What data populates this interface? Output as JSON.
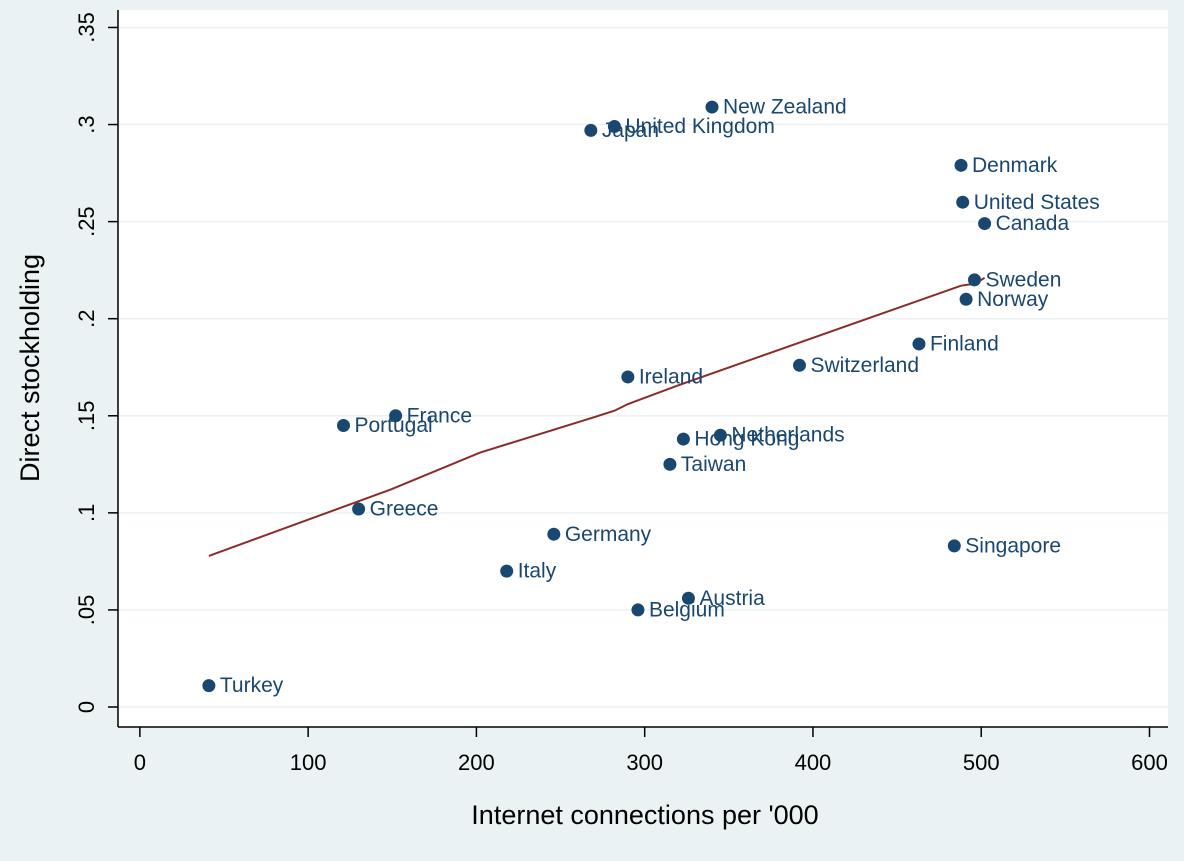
{
  "chart_data": {
    "type": "scatter",
    "xlabel": "Internet connections per '000",
    "ylabel": "Direct stockholding",
    "xlim": [
      -13,
      611
    ],
    "xticks": [
      0,
      100,
      200,
      300,
      400,
      500,
      600
    ],
    "ylim": [
      -0.0103,
      0.359
    ],
    "yticks": [
      0,
      {
        "value": 0.05,
        "label": ".05"
      },
      {
        "value": 0.1,
        "label": ".1"
      },
      {
        "value": 0.15,
        "label": ".15"
      },
      {
        "value": 0.2,
        "label": ".2"
      },
      {
        "value": 0.25,
        "label": ".25"
      },
      {
        "value": 0.3,
        "label": ".3"
      },
      {
        "value": 0.35,
        "label": ".35"
      }
    ],
    "grid": true,
    "color": "#1a476f",
    "points": {
      "labels": [
        "Turkey",
        "Greece",
        "Portugal",
        "France",
        "Italy",
        "Germany",
        "Ireland",
        "Japan",
        "United Kingdom",
        "New Zealand",
        "Belgium",
        "Austria",
        "Taiwan",
        "Hong Kong",
        "Netherlands",
        "Switzerland",
        "Finland",
        "Singapore",
        "Denmark",
        "United States",
        "Canada",
        "Sweden",
        "Norway"
      ],
      "x": [
        41,
        130,
        121,
        152,
        218,
        246,
        290,
        268,
        282,
        340,
        296,
        326,
        315,
        323,
        345,
        392,
        463,
        484,
        488,
        489,
        502,
        496,
        491
      ],
      "y": [
        0.011,
        0.102,
        0.145,
        0.15,
        0.07,
        0.089,
        0.17,
        0.297,
        0.299,
        0.309,
        0.05,
        0.056,
        0.125,
        0.138,
        0.14,
        0.176,
        0.187,
        0.083,
        0.279,
        0.26,
        0.249,
        0.22,
        0.21
      ]
    },
    "fit": {
      "color": "#8b2c2c",
      "x": [
        41,
        149,
        202,
        269,
        282,
        290,
        321,
        488,
        496,
        502
      ],
      "y": [
        0.0778,
        0.112,
        0.131,
        0.149,
        0.1526,
        0.156,
        0.166,
        0.217,
        0.218,
        0.221
      ]
    }
  }
}
